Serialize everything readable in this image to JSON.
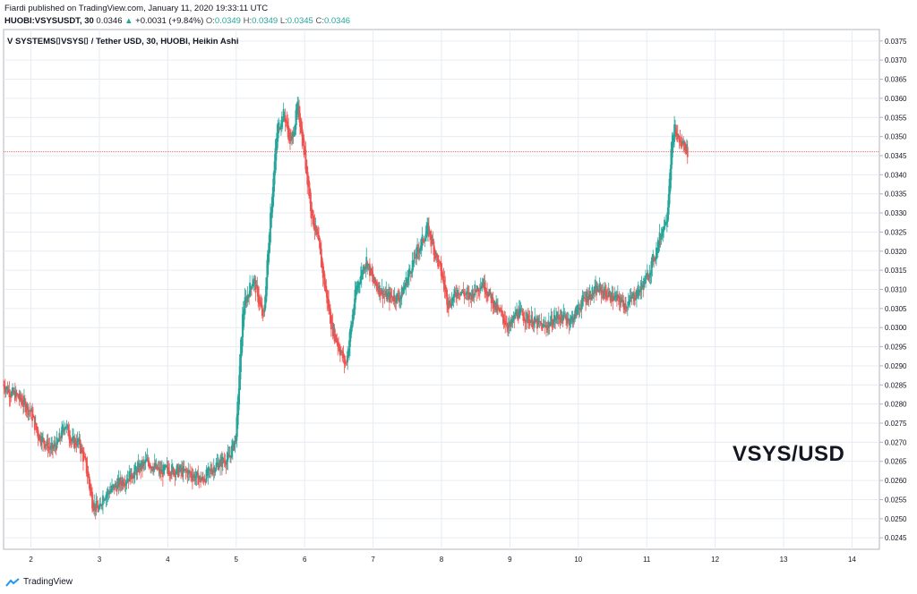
{
  "header": {
    "line1": "Fiardi published on TradingView.com, January 11, 2020 19:33:11 UTC",
    "ticker": "HUOBI:VSYSUSDT, 30",
    "price": "0.0346",
    "change": "+0.0031 (+9.84%)",
    "o_label": "O:",
    "o": "0.0349",
    "h_label": "H:",
    "h": "0.0349",
    "l_label": "L:",
    "l": "0.0345",
    "c_label": "C:",
    "c": "0.0346"
  },
  "symbol_title": "V SYSTEMS⌷VSYS⌷ / Tether USD, 30, HUOBI, Heikin Ashi",
  "watermark": "VSYS/USD",
  "footer": {
    "brand": "TradingView"
  },
  "colors": {
    "up": "#26a69a",
    "down": "#ef5350",
    "grid": "#e6ecf2",
    "price_line": "#ef5350",
    "logo": "#2196f3"
  },
  "chart_data": {
    "type": "line",
    "style": "Heikin Ashi candlesticks",
    "x_ticks": [
      "2",
      "3",
      "4",
      "5",
      "6",
      "7",
      "8",
      "9",
      "10",
      "11",
      "12",
      "13",
      "14"
    ],
    "y_ticks": [
      "0.0375",
      "0.0370",
      "0.0365",
      "0.0360",
      "0.0355",
      "0.0350",
      "0.0345",
      "0.0340",
      "0.0335",
      "0.0330",
      "0.0325",
      "0.0320",
      "0.0315",
      "0.0310",
      "0.0305",
      "0.0300",
      "0.0295",
      "0.0290",
      "0.0285",
      "0.0280",
      "0.0275",
      "0.0270",
      "0.0265",
      "0.0260",
      "0.0255",
      "0.0250",
      "0.0245"
    ],
    "ylim": [
      0.0242,
      0.0378
    ],
    "xlim": [
      1.6,
      14.4
    ],
    "current_price": "0.0346",
    "grid": true,
    "series": [
      {
        "x": [
          1.6,
          1.7,
          1.8,
          2.0,
          2.1,
          2.3,
          2.4,
          2.5,
          2.6,
          2.7,
          2.8,
          2.9,
          3.0,
          3.05,
          3.2,
          3.5,
          3.7,
          3.9,
          4.0,
          4.3,
          4.5,
          4.7,
          4.9,
          5.0,
          5.05,
          5.1,
          5.25,
          5.4,
          5.5,
          5.6,
          5.7,
          5.8,
          5.9,
          6.0,
          6.1,
          6.2,
          6.3,
          6.4,
          6.6,
          6.75,
          6.9,
          7.0,
          7.2,
          7.4,
          7.6,
          7.8,
          8.0,
          8.1,
          8.25,
          8.4,
          8.6,
          8.8,
          9.0,
          9.1,
          9.3,
          9.5,
          9.7,
          9.9,
          10.1,
          10.3,
          10.5,
          10.7,
          10.9,
          11.0,
          11.1,
          11.3,
          11.35,
          11.4,
          11.45,
          11.5,
          11.55,
          11.6
        ],
        "y": [
          0.0285,
          0.0283,
          0.0282,
          0.0278,
          0.0272,
          0.0268,
          0.027,
          0.0275,
          0.027,
          0.027,
          0.0264,
          0.0254,
          0.0252,
          0.0256,
          0.0258,
          0.0262,
          0.0265,
          0.0262,
          0.0263,
          0.0262,
          0.026,
          0.0264,
          0.0266,
          0.0272,
          0.029,
          0.0305,
          0.0313,
          0.0302,
          0.033,
          0.0352,
          0.0356,
          0.0348,
          0.0358,
          0.0345,
          0.033,
          0.0322,
          0.031,
          0.03,
          0.029,
          0.031,
          0.0318,
          0.0312,
          0.0308,
          0.0308,
          0.0318,
          0.0326,
          0.0314,
          0.0306,
          0.031,
          0.0308,
          0.0312,
          0.0305,
          0.03,
          0.0304,
          0.0302,
          0.03,
          0.0303,
          0.0302,
          0.0308,
          0.031,
          0.0308,
          0.0306,
          0.031,
          0.0313,
          0.0318,
          0.033,
          0.0345,
          0.0352,
          0.035,
          0.0348,
          0.0348,
          0.0346
        ]
      }
    ]
  }
}
